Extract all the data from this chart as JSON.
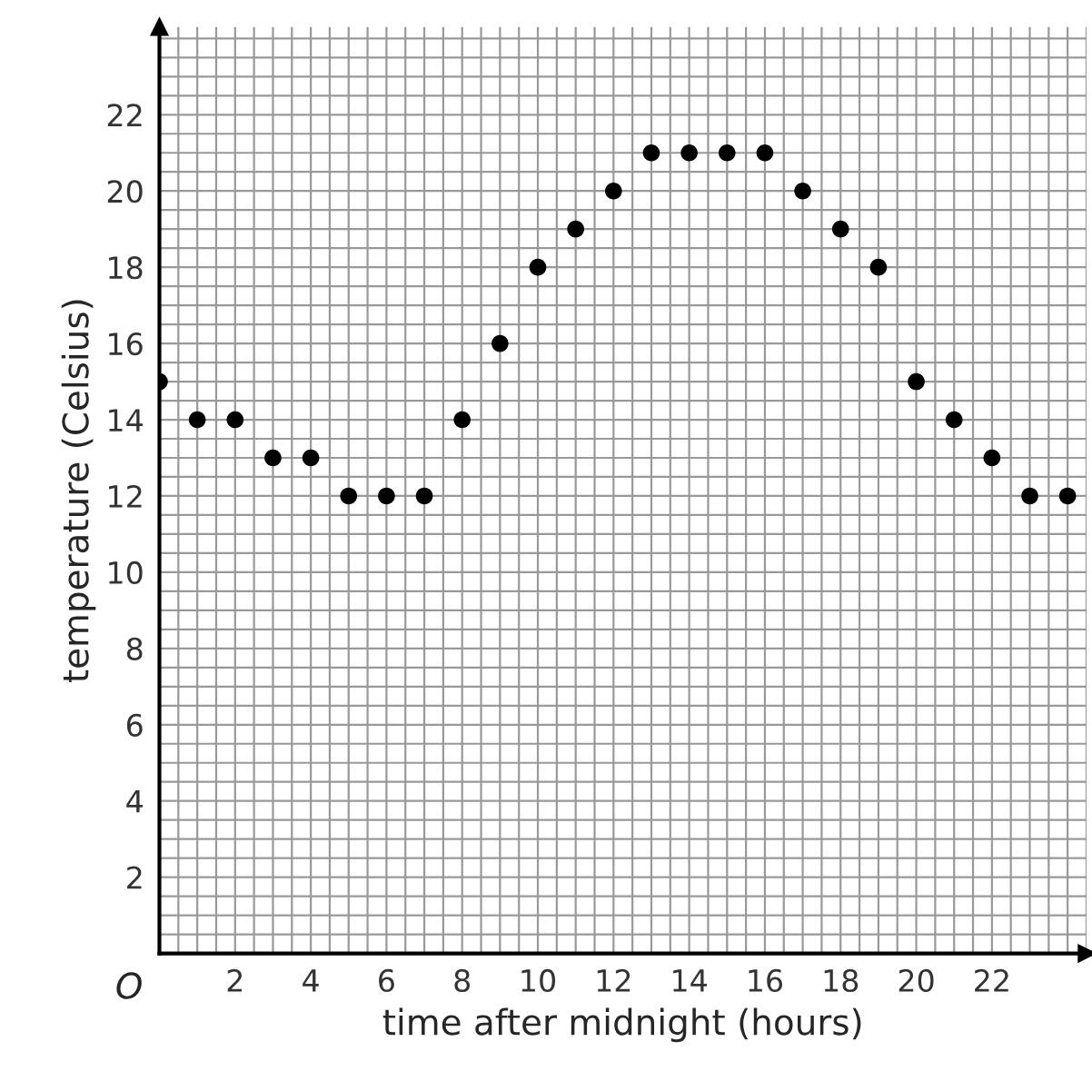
{
  "chart_data": {
    "type": "scatter",
    "xlabel": "time after midnight (hours)",
    "ylabel": "temperature (Celsius)",
    "x": [
      0,
      1,
      2,
      3,
      4,
      5,
      6,
      7,
      8,
      9,
      10,
      11,
      12,
      13,
      14,
      15,
      16,
      17,
      18,
      19,
      20,
      21,
      22,
      23,
      24
    ],
    "series": [
      {
        "color": "#000000",
        "values": [
          15,
          14,
          14,
          13,
          13,
          12,
          12,
          12,
          14,
          16,
          18,
          19,
          20,
          21,
          21,
          21,
          21,
          20,
          19,
          18,
          15,
          14,
          13,
          12,
          12
        ]
      }
    ],
    "xlim": [
      0,
      24.5
    ],
    "ylim": [
      0,
      24.3
    ],
    "xticks": [
      2,
      4,
      6,
      8,
      10,
      12,
      14,
      16,
      18,
      20,
      22
    ],
    "yticks": [
      2,
      4,
      6,
      8,
      10,
      12,
      14,
      16,
      18,
      20,
      22
    ],
    "grid": true,
    "marker": "circle",
    "annotations": [
      "O"
    ]
  }
}
